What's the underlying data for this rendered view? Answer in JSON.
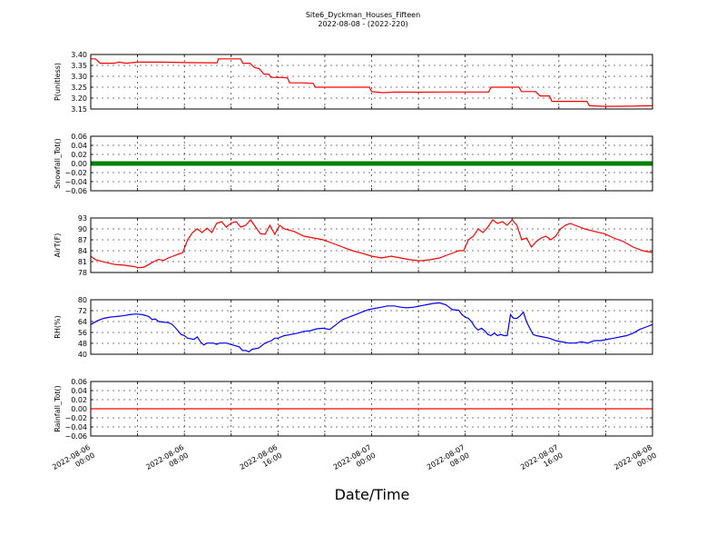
{
  "chart_data": {
    "type": "line",
    "title": "Site6_Dyckman_Houses_Fifteen",
    "subtitle": "2022-08-08 - (2022-220)",
    "xlabel": "Date/Time",
    "x_ticks": [
      {
        "t": 0,
        "line1": "2022-08-06",
        "line2": "00:00"
      },
      {
        "t": 8,
        "line1": "2022-08-06",
        "line2": "08:00"
      },
      {
        "t": 16,
        "line1": "2022-08-06",
        "line2": "16:00"
      },
      {
        "t": 24,
        "line1": "2022-08-07",
        "line2": "00:00"
      },
      {
        "t": 32,
        "line1": "2022-08-07",
        "line2": "08:00"
      },
      {
        "t": 40,
        "line1": "2022-08-07",
        "line2": "16:00"
      },
      {
        "t": 48,
        "line1": "2022-08-08",
        "line2": "00:00"
      }
    ],
    "x_range_hours": [
      0,
      48
    ],
    "panels": [
      {
        "ylabel": "P(unitless)",
        "ylim": [
          3.15,
          3.4
        ],
        "yticks": [
          "3.40",
          "3.35",
          "3.30",
          "3.25",
          "3.20",
          "3.15"
        ],
        "color": "#ff0000",
        "style": "line",
        "points": [
          [
            0,
            3.38
          ],
          [
            0.4,
            3.38
          ],
          [
            0.8,
            3.36
          ],
          [
            2,
            3.36
          ],
          [
            2.4,
            3.365
          ],
          [
            3,
            3.36
          ],
          [
            4,
            3.365
          ],
          [
            6,
            3.365
          ],
          [
            8,
            3.363
          ],
          [
            10,
            3.362
          ],
          [
            10.8,
            3.362
          ],
          [
            10.9,
            3.38
          ],
          [
            12,
            3.38
          ],
          [
            12.8,
            3.38
          ],
          [
            13,
            3.36
          ],
          [
            13.6,
            3.36
          ],
          [
            14,
            3.34
          ],
          [
            14.4,
            3.335
          ],
          [
            14.8,
            3.31
          ],
          [
            15.2,
            3.31
          ],
          [
            15.4,
            3.295
          ],
          [
            16,
            3.295
          ],
          [
            16.8,
            3.293
          ],
          [
            17,
            3.27
          ],
          [
            18,
            3.27
          ],
          [
            19,
            3.268
          ],
          [
            19.2,
            3.25
          ],
          [
            20,
            3.25
          ],
          [
            22,
            3.25
          ],
          [
            23.4,
            3.25
          ],
          [
            23.8,
            3.25
          ],
          [
            24,
            3.23
          ],
          [
            25,
            3.225
          ],
          [
            26,
            3.228
          ],
          [
            28,
            3.227
          ],
          [
            30,
            3.228
          ],
          [
            32,
            3.228
          ],
          [
            33,
            3.228
          ],
          [
            34,
            3.228
          ],
          [
            34.2,
            3.25
          ],
          [
            36,
            3.25
          ],
          [
            36.6,
            3.25
          ],
          [
            36.8,
            3.23
          ],
          [
            38,
            3.23
          ],
          [
            38.4,
            3.21
          ],
          [
            39.2,
            3.21
          ],
          [
            39.4,
            3.185
          ],
          [
            40,
            3.185
          ],
          [
            42,
            3.185
          ],
          [
            42.4,
            3.185
          ],
          [
            42.6,
            3.165
          ],
          [
            44,
            3.162
          ],
          [
            46,
            3.163
          ],
          [
            48,
            3.165
          ]
        ]
      },
      {
        "ylabel": "Snowfall_Tot()",
        "ylim": [
          -0.06,
          0.06
        ],
        "yticks": [
          "0.06",
          "0.04",
          "0.02",
          "0.00",
          "−0.02",
          "−0.04",
          "−0.06"
        ],
        "color": "#008000",
        "style": "markers",
        "points": [
          [
            0,
            0
          ],
          [
            48,
            0
          ]
        ]
      },
      {
        "ylabel": "AirT(F)",
        "ylim": [
          78,
          93
        ],
        "yticks": [
          "93",
          "90",
          "87",
          "84",
          "81",
          "78"
        ],
        "color": "#ff0000",
        "style": "line",
        "points": [
          [
            0,
            82.5
          ],
          [
            0.5,
            81.5
          ],
          [
            1.5,
            80.8
          ],
          [
            2.5,
            80.2
          ],
          [
            3.5,
            80
          ],
          [
            4.5,
            79.6
          ],
          [
            5,
            79.3
          ],
          [
            5.5,
            79.5
          ],
          [
            6,
            80.2
          ],
          [
            6.5,
            81
          ],
          [
            7,
            81.6
          ],
          [
            7.5,
            81.3
          ],
          [
            8,
            82
          ],
          [
            8.5,
            82.5
          ],
          [
            9,
            83
          ],
          [
            9.5,
            83.5
          ],
          [
            10,
            87
          ],
          [
            10.5,
            89
          ],
          [
            11,
            90
          ],
          [
            11.5,
            89
          ],
          [
            12,
            90.2
          ],
          [
            12.5,
            89
          ],
          [
            13,
            91.5
          ],
          [
            13.5,
            92
          ],
          [
            14,
            90.5
          ],
          [
            14.5,
            91.6
          ],
          [
            15,
            92
          ],
          [
            15.5,
            90.5
          ],
          [
            16,
            91
          ],
          [
            16.5,
            92.5
          ],
          [
            17,
            90.6
          ],
          [
            17.5,
            88.7
          ],
          [
            18,
            88.5
          ],
          [
            18.5,
            91
          ],
          [
            19,
            88.5
          ],
          [
            19.5,
            91
          ],
          [
            20,
            90
          ],
          [
            21,
            89.3
          ],
          [
            22,
            88
          ],
          [
            23,
            87.5
          ],
          [
            24,
            87
          ],
          [
            25,
            86
          ],
          [
            26,
            85
          ],
          [
            27,
            84
          ],
          [
            28,
            83.3
          ],
          [
            29,
            82.5
          ],
          [
            30,
            82
          ],
          [
            31,
            82.5
          ],
          [
            32,
            82
          ],
          [
            33,
            81.5
          ],
          [
            34,
            81.2
          ],
          [
            35,
            81.5
          ],
          [
            36,
            82
          ],
          [
            37,
            83
          ],
          [
            37.5,
            83.5
          ],
          [
            38,
            84
          ],
          [
            38.5,
            84
          ],
          [
            39,
            87
          ],
          [
            39.5,
            88
          ],
          [
            40,
            90
          ],
          [
            40.5,
            89
          ],
          [
            41,
            90.5
          ],
          [
            41.5,
            92.5
          ],
          [
            42,
            91.5
          ],
          [
            42.5,
            92
          ],
          [
            43,
            91
          ],
          [
            43.5,
            92.5
          ],
          [
            44,
            91
          ],
          [
            44.5,
            87
          ],
          [
            45,
            87.5
          ],
          [
            45.5,
            85
          ],
          [
            46,
            86.5
          ],
          [
            46.5,
            87.5
          ],
          [
            47,
            88
          ],
          [
            47.5,
            87
          ],
          [
            48,
            88
          ],
          [
            48.5,
            90
          ],
          [
            49,
            91
          ],
          [
            49.5,
            91.5
          ],
          [
            50,
            91
          ],
          [
            51,
            90
          ],
          [
            52,
            89.3
          ],
          [
            53,
            88.7
          ],
          [
            54,
            87.5
          ],
          [
            55,
            86.5
          ],
          [
            56,
            85
          ],
          [
            57,
            84
          ],
          [
            58,
            83.5
          ]
        ]
      },
      {
        "ylabel": "RH(%)",
        "ylim": [
          36,
          80
        ],
        "yticks": [
          "80",
          "72",
          "64",
          "56",
          "48",
          "40"
        ],
        "color": "#0000ff",
        "style": "line",
        "points": [
          [
            0,
            60
          ],
          [
            1,
            63
          ],
          [
            2,
            65
          ],
          [
            3,
            66
          ],
          [
            4,
            66.5
          ],
          [
            5,
            67
          ],
          [
            6,
            68
          ],
          [
            7,
            68.5
          ],
          [
            8,
            68
          ],
          [
            9,
            66.5
          ],
          [
            9.5,
            64
          ],
          [
            10,
            64.5
          ],
          [
            10.5,
            62.5
          ],
          [
            11,
            62
          ],
          [
            12,
            61.5
          ],
          [
            12.5,
            60.5
          ],
          [
            13,
            58
          ],
          [
            13.5,
            55
          ],
          [
            14,
            52
          ],
          [
            14.5,
            51
          ],
          [
            15,
            49
          ],
          [
            16,
            48
          ],
          [
            16.5,
            50
          ],
          [
            17,
            46
          ],
          [
            17.5,
            43.5
          ],
          [
            18,
            45
          ],
          [
            19,
            45
          ],
          [
            19.5,
            44
          ],
          [
            20,
            45
          ],
          [
            21,
            45
          ],
          [
            22,
            43.5
          ],
          [
            23,
            42
          ],
          [
            23.5,
            39
          ],
          [
            24,
            39
          ],
          [
            24.5,
            38
          ],
          [
            25,
            40
          ],
          [
            26,
            41
          ],
          [
            27,
            45
          ],
          [
            28,
            47
          ],
          [
            28.5,
            49
          ],
          [
            29,
            49
          ],
          [
            30,
            51
          ],
          [
            31,
            52
          ],
          [
            32,
            53
          ],
          [
            33,
            54.5
          ],
          [
            34,
            55
          ],
          [
            35,
            56.5
          ],
          [
            36,
            57
          ],
          [
            37,
            56
          ],
          [
            38,
            60
          ],
          [
            39,
            64
          ],
          [
            40,
            66
          ],
          [
            41,
            68
          ],
          [
            42,
            70
          ],
          [
            43,
            72
          ],
          [
            44,
            73
          ],
          [
            45,
            74
          ],
          [
            46,
            75
          ],
          [
            47,
            75
          ],
          [
            48,
            74
          ],
          [
            49,
            73.5
          ],
          [
            50,
            74
          ],
          [
            51,
            75
          ],
          [
            52,
            76
          ],
          [
            53,
            77
          ],
          [
            54,
            77.5
          ],
          [
            55,
            76
          ],
          [
            55.5,
            74
          ],
          [
            56,
            72
          ],
          [
            57,
            71.5
          ],
          [
            57.5,
            68
          ],
          [
            58,
            66
          ],
          [
            58.5,
            65
          ],
          [
            59,
            62
          ],
          [
            59.5,
            58
          ],
          [
            60,
            55.5
          ],
          [
            60.5,
            57
          ],
          [
            61,
            55
          ],
          [
            61.5,
            52
          ],
          [
            62,
            51
          ],
          [
            62.5,
            53
          ],
          [
            63,
            51
          ],
          [
            63.5,
            52
          ],
          [
            64,
            51
          ],
          [
            64.5,
            51
          ],
          [
            65,
            68
          ],
          [
            65.5,
            65
          ],
          [
            66,
            65
          ],
          [
            66.5,
            67
          ],
          [
            67,
            70
          ],
          [
            67.5,
            62
          ],
          [
            68,
            57
          ],
          [
            68.5,
            52
          ],
          [
            69,
            51
          ],
          [
            70,
            50
          ],
          [
            71,
            49
          ],
          [
            72,
            47
          ],
          [
            73,
            46
          ],
          [
            74,
            45
          ],
          [
            75,
            45
          ],
          [
            76,
            46
          ],
          [
            77,
            45
          ],
          [
            78,
            47
          ],
          [
            79,
            47
          ],
          [
            80,
            48
          ],
          [
            81,
            49
          ],
          [
            82,
            50
          ],
          [
            83,
            51
          ],
          [
            84,
            53
          ],
          [
            85,
            56
          ],
          [
            86,
            58
          ],
          [
            87,
            60
          ]
        ]
      },
      {
        "ylabel": "Rainfall_Tot()",
        "ylim": [
          -0.06,
          0.06
        ],
        "yticks": [
          "0.06",
          "0.04",
          "0.02",
          "0.00",
          "−0.02",
          "−0.04",
          "−0.06"
        ],
        "color": "#ff0000",
        "style": "line",
        "points": [
          [
            0,
            0
          ],
          [
            48,
            0
          ]
        ]
      }
    ]
  }
}
